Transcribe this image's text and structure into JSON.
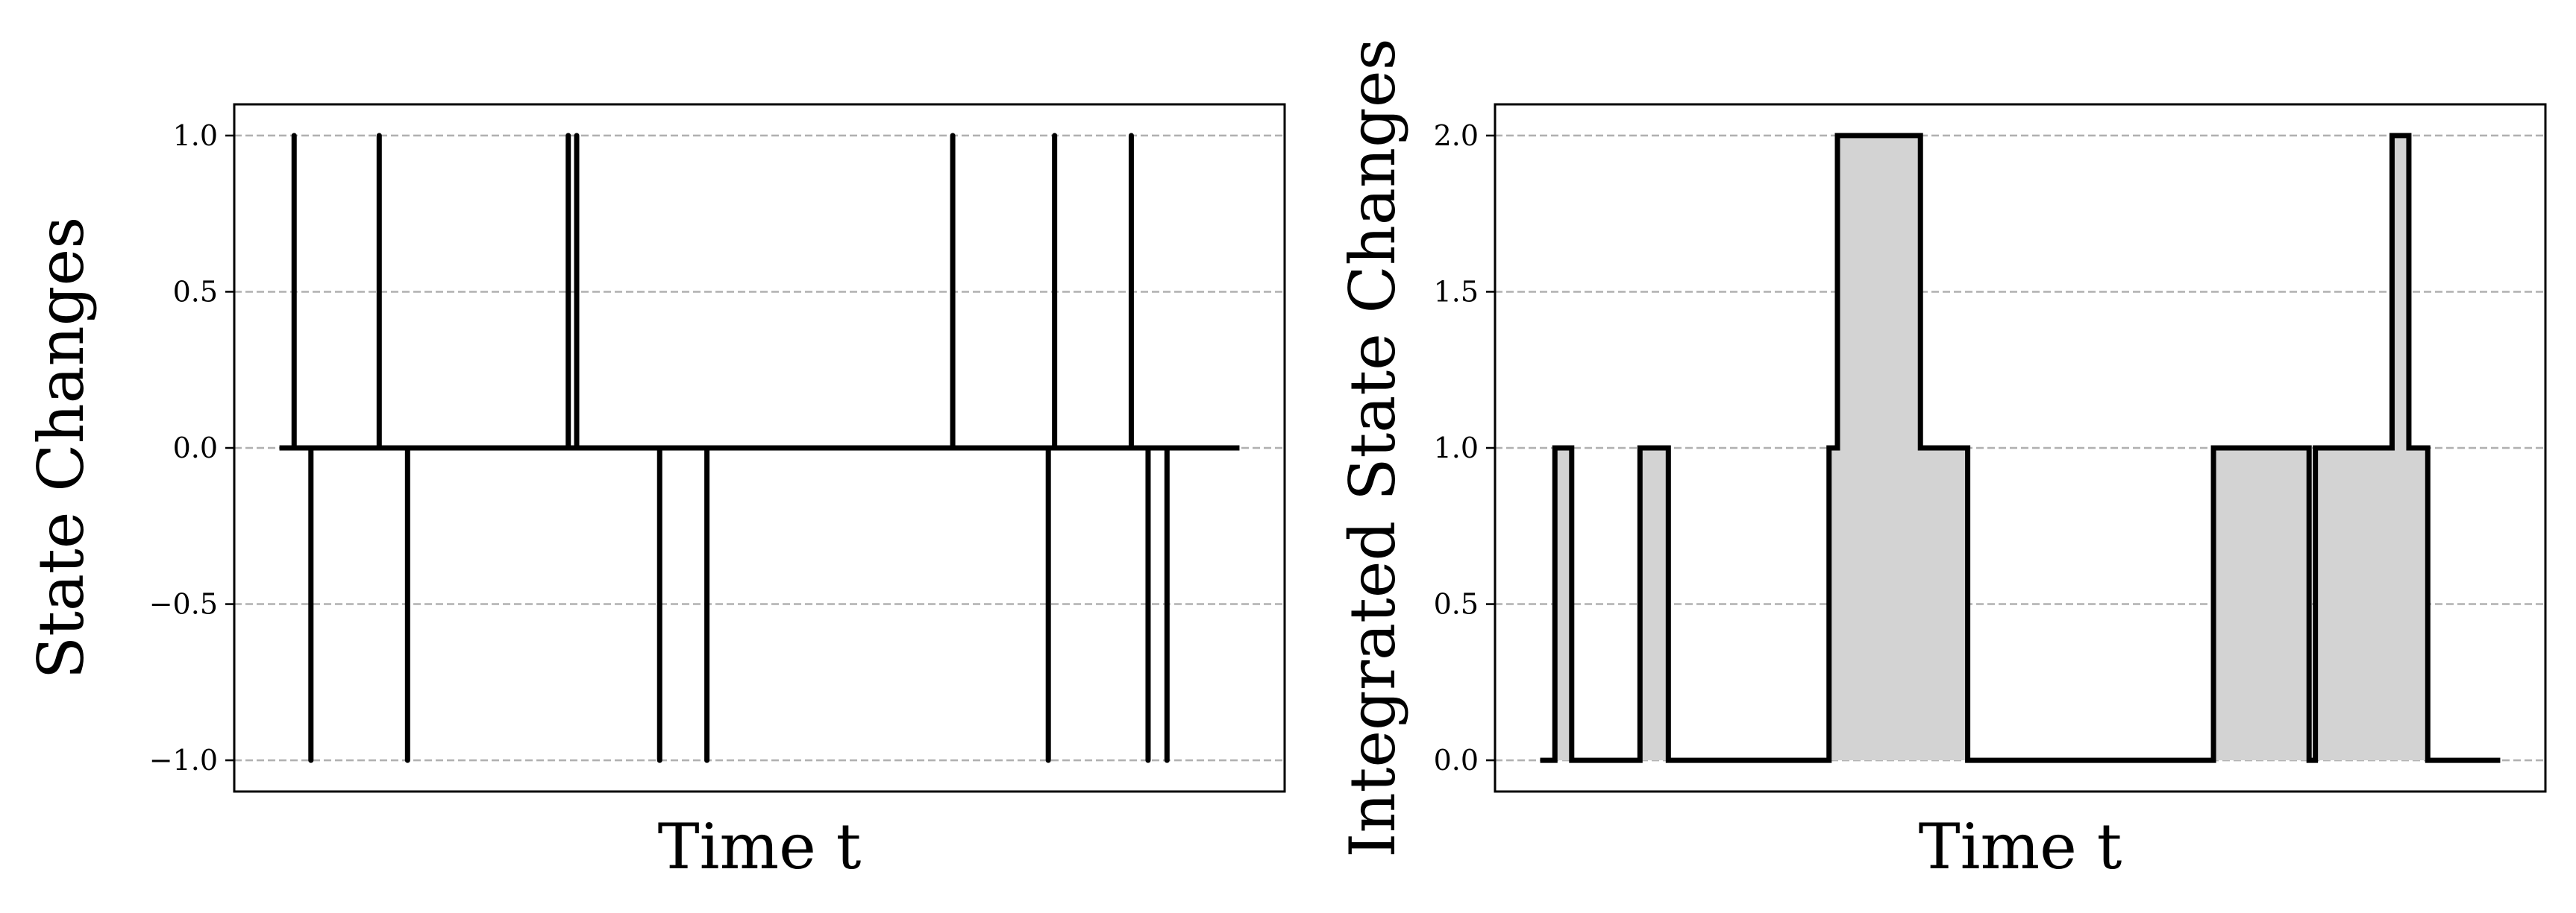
{
  "chart_data": [
    {
      "type": "line",
      "subtype": "impulse",
      "xlabel": "Time t",
      "ylabel": "State Changes",
      "xlim": [
        0,
        100
      ],
      "ylim": [
        -1.1,
        1.1
      ],
      "yticks": [
        -1.0,
        -0.5,
        0.0,
        0.5,
        1.0
      ],
      "ytick_labels": [
        "−1.0",
        "−0.5",
        "0.0",
        "0.5",
        "1.0"
      ],
      "grid": "horizontal dashed",
      "x_ticks_shown": false,
      "baseline": [
        4.3,
        95.7
      ],
      "series": [
        {
          "x": [
            5.7,
            7.3,
            13.8,
            16.5,
            31.8,
            32.6,
            40.5,
            45.0,
            68.4,
            77.5,
            78.1,
            85.4,
            87.0,
            88.8
          ],
          "values": [
            1,
            -1,
            1,
            -1,
            1,
            1,
            -1,
            -1,
            1,
            -1,
            1,
            1,
            -1,
            -1
          ]
        }
      ],
      "color": "#000000"
    },
    {
      "type": "area",
      "subtype": "step",
      "xlabel": "Time t",
      "ylabel": "Integrated State Changes",
      "xlim": [
        0,
        100
      ],
      "ylim": [
        -0.1,
        2.1
      ],
      "yticks": [
        0.0,
        0.5,
        1.0,
        1.5,
        2.0
      ],
      "ytick_labels": [
        "0.0",
        "0.5",
        "1.0",
        "1.5",
        "2.0"
      ],
      "grid": "horizontal dashed",
      "x_ticks_shown": false,
      "series": [
        {
          "x": [
            4.3,
            5.7,
            7.3,
            13.8,
            16.5,
            31.8,
            32.6,
            40.5,
            45.0,
            68.4,
            77.5,
            78.1,
            85.4,
            87.0,
            88.8,
            95.7
          ],
          "values": [
            0,
            1,
            0,
            1,
            0,
            1,
            2,
            1,
            0,
            1,
            0,
            1,
            2,
            1,
            0,
            0
          ]
        }
      ],
      "color": "#000000",
      "fill_color": "#d3d3d3"
    }
  ]
}
